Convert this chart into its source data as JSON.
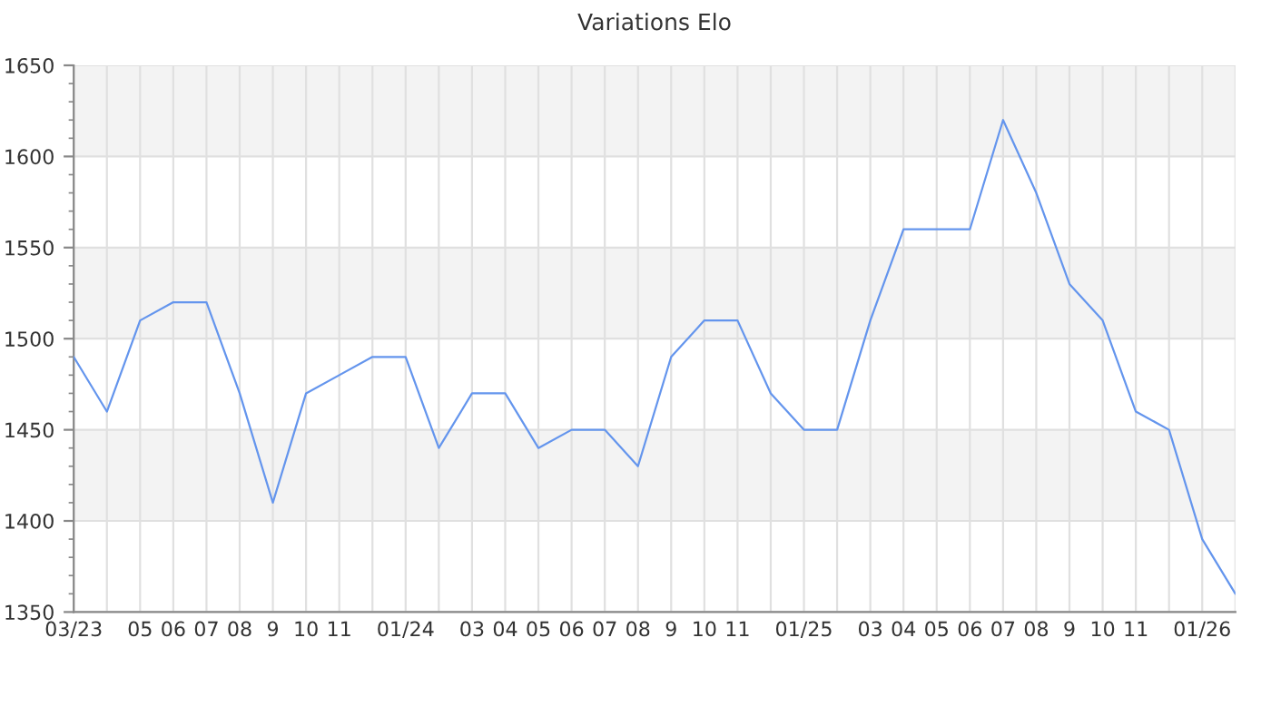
{
  "chart_data": {
    "type": "line",
    "title": "Variations Elo",
    "categories": [
      "03/23",
      null,
      "05",
      "06",
      "07",
      "08",
      "9",
      "10",
      "11",
      null,
      "01/24",
      null,
      "03",
      "04",
      "05",
      "06",
      "07",
      "08",
      "9",
      "10",
      "11",
      null,
      "01/25",
      null,
      "03",
      "04",
      "05",
      "06",
      "07",
      "08",
      "9",
      "10",
      "11",
      null,
      "01/26",
      null
    ],
    "series": [
      {
        "color": "#6495ed",
        "values": [
          1490,
          1460,
          1510,
          1520,
          1520,
          1470,
          1410,
          1470,
          1480,
          1490,
          1490,
          1440,
          1470,
          1470,
          1440,
          1450,
          1450,
          1430,
          1490,
          1510,
          1510,
          1470,
          1450,
          1450,
          1510,
          1560,
          1560,
          1560,
          1620,
          1580,
          1530,
          1510,
          1460,
          1450,
          1390,
          1360
        ]
      }
    ],
    "ylim": [
      1350,
      1650
    ],
    "yticks": [
      1350,
      1400,
      1450,
      1500,
      1550,
      1600,
      1650
    ],
    "grid": true,
    "legend": false,
    "marker": "none",
    "line_style": "solid"
  }
}
